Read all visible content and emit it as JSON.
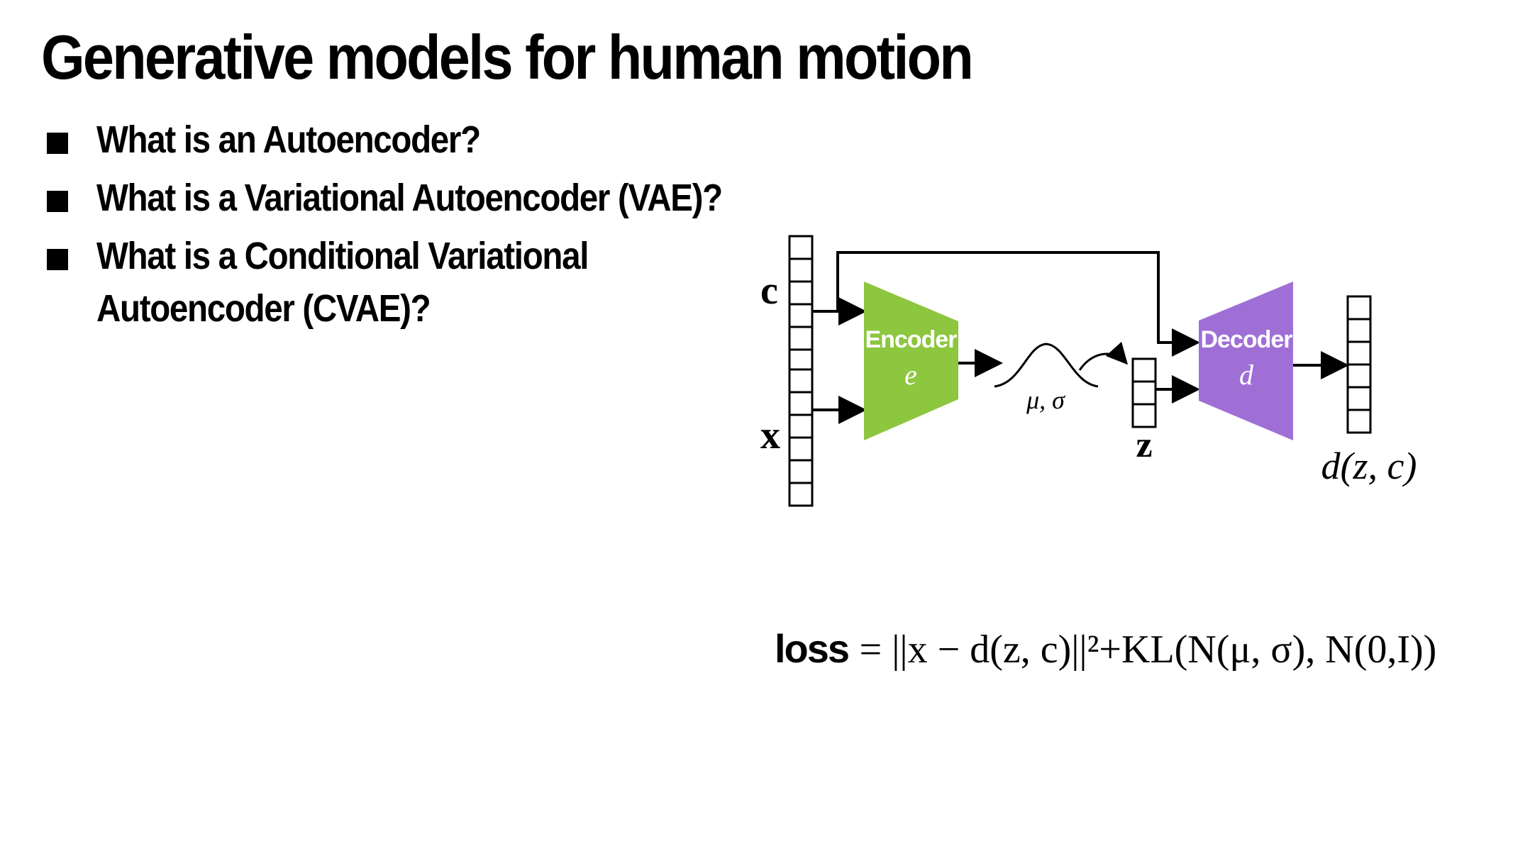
{
  "title": "Generative models for human motion",
  "bullets": [
    {
      "line1": "What is an Autoencoder?",
      "line2": ""
    },
    {
      "line1": "What is a Variational Autoencoder (VAE)?",
      "line2": ""
    },
    {
      "line1": "What is a Conditional Variational",
      "line2": "Autoencoder (CVAE)?"
    }
  ],
  "diagram": {
    "input_c": "c",
    "input_x": "x",
    "encoder": {
      "label": "Encoder",
      "symbol": "e",
      "color": "#8dc63f"
    },
    "distribution_label": "μ, σ",
    "latent_label": "z",
    "decoder": {
      "label": "Decoder",
      "symbol": "d",
      "color": "#9f6fd6"
    },
    "output_label": "d(z, c)"
  },
  "loss": {
    "label": "loss",
    "equation": "= ||x − d(z, c)||²+KL(N(μ, σ), N(0,I))"
  }
}
